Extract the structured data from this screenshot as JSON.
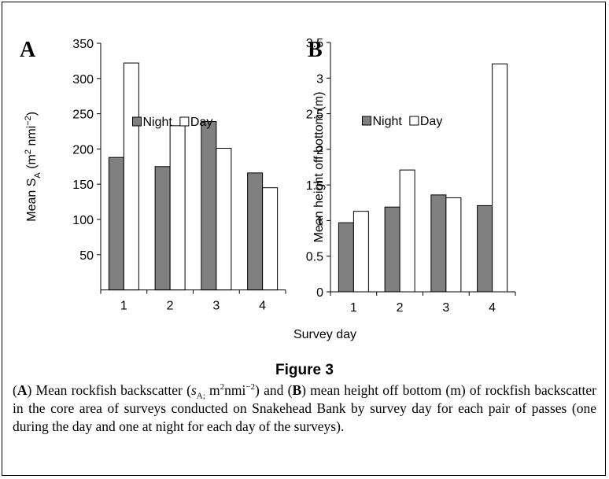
{
  "figure": {
    "xlabel": "Survey day",
    "title": "Figure 3",
    "caption": [
      "(",
      "A",
      ") Mean rockfish backscatter (",
      "s",
      "A;",
      " m",
      "2",
      "nmi",
      "−2",
      ") and (",
      "B",
      ") mean height off bottom (m) of rockfish backscatter in the core area of surveys conducted on Snakehead Bank by survey day for each pair of passes (one during the day and one at night for each day of the surveys)."
    ]
  },
  "chart_data": [
    {
      "type": "bar",
      "title": "A",
      "ylabel": [
        "Mean S",
        "A",
        " (m",
        "2",
        " nmi",
        "−2",
        ")"
      ],
      "categories": [
        "1",
        "2",
        "3",
        "4"
      ],
      "series": [
        {
          "name": "Night",
          "color": "#808080",
          "values": [
            188,
            175,
            239,
            166
          ]
        },
        {
          "name": "Day",
          "color": "#ffffff",
          "values": [
            322,
            233,
            201,
            145
          ]
        }
      ],
      "ylim": [
        0,
        350
      ],
      "yticks": [
        50,
        100,
        150,
        200,
        250,
        300,
        350
      ],
      "legend": "upper center"
    },
    {
      "type": "bar",
      "title": "B",
      "ylabel": [
        "Mean height off bottom (m)"
      ],
      "categories": [
        "1",
        "2",
        "3",
        "4"
      ],
      "series": [
        {
          "name": "Night",
          "color": "#808080",
          "values": [
            0.97,
            1.19,
            1.36,
            1.21
          ]
        },
        {
          "name": "Day",
          "color": "#ffffff",
          "values": [
            1.13,
            1.71,
            1.32,
            3.2
          ]
        }
      ],
      "ylim": [
        0,
        3.5
      ],
      "yticks": [
        0,
        0.5,
        1,
        1.5,
        2,
        2.5,
        3,
        3.5
      ],
      "legend": "upper center"
    }
  ]
}
